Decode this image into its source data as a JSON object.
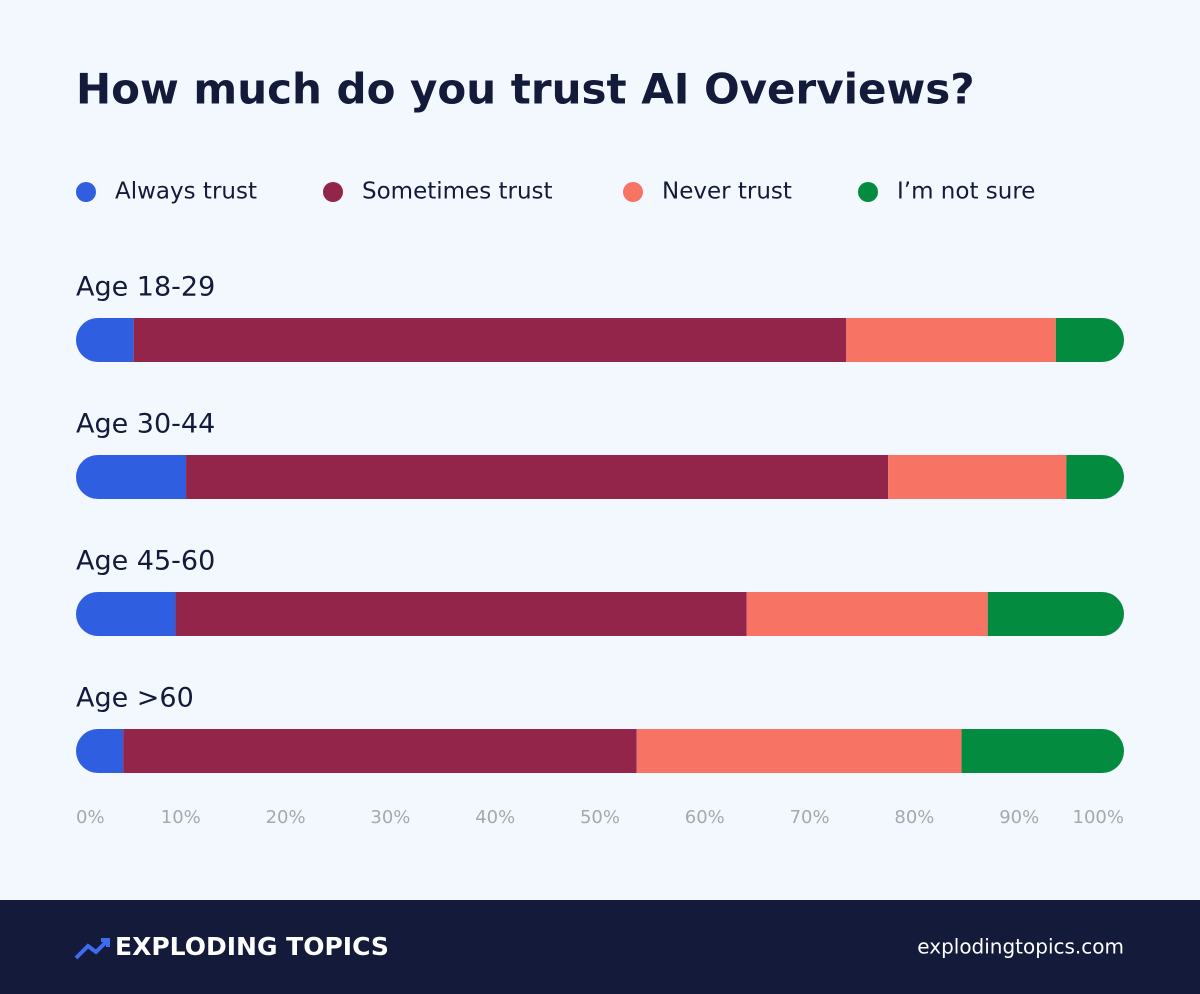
{
  "chart_data": {
    "type": "bar",
    "orientation": "horizontal",
    "stacked": true,
    "title": "How much do you trust AI Overviews?",
    "categories": [
      "Age 18-29",
      "Age 30-44",
      "Age 45-60",
      "Age >60"
    ],
    "series": [
      {
        "name": "Always trust",
        "color": "#2f5ee0",
        "values": [
          5.5,
          10.5,
          9.5,
          4.5
        ]
      },
      {
        "name": "Sometimes trust",
        "color": "#93244a",
        "values": [
          68,
          67,
          54.5,
          49
        ]
      },
      {
        "name": "Never trust",
        "color": "#f77364",
        "values": [
          20,
          17,
          23,
          31
        ]
      },
      {
        "name": "I’m not sure",
        "color": "#038c3f",
        "values": [
          6.5,
          5.5,
          13,
          15.5
        ]
      }
    ],
    "xlim": [
      0,
      100
    ],
    "xticks": [
      {
        "value": 0,
        "label": "0%"
      },
      {
        "value": 10,
        "label": "10%"
      },
      {
        "value": 20,
        "label": "20%"
      },
      {
        "value": 30,
        "label": "30%"
      },
      {
        "value": 40,
        "label": "40%"
      },
      {
        "value": 50,
        "label": "50%"
      },
      {
        "value": 60,
        "label": "60%"
      },
      {
        "value": 70,
        "label": "70%"
      },
      {
        "value": 80,
        "label": "80%"
      },
      {
        "value": 90,
        "label": "90%"
      },
      {
        "value": 100,
        "label": "100%"
      }
    ],
    "legend": "top"
  },
  "footer": {
    "brand": "EXPLODING TOPICS",
    "url": "explodingtopics.com"
  }
}
